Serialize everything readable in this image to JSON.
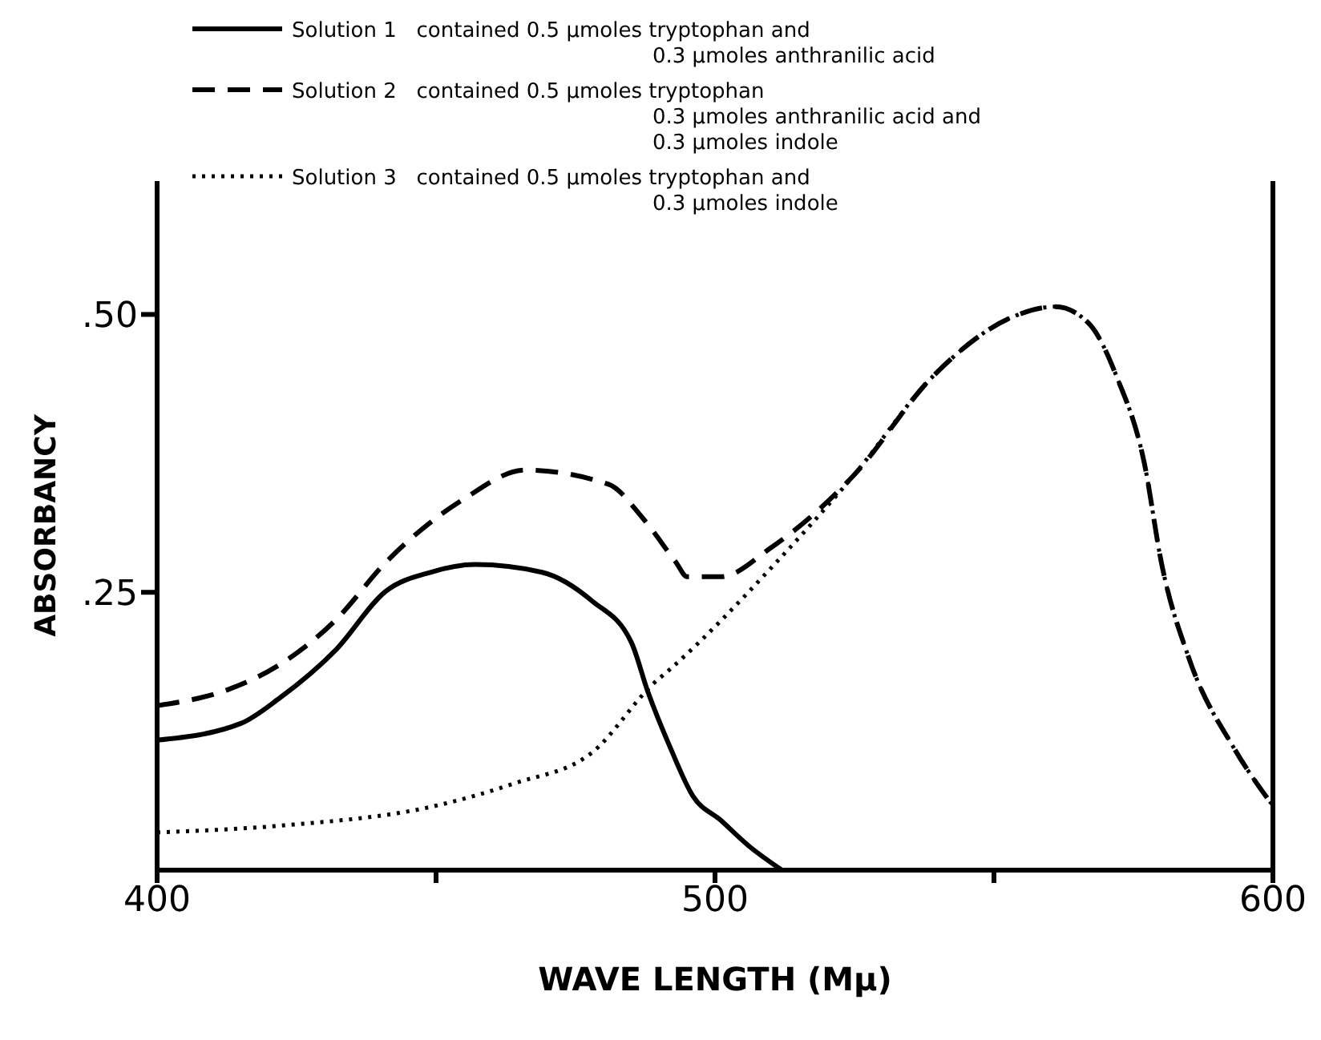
{
  "chart_data": {
    "type": "line",
    "xlabel": "WAVE LENGTH (Mμ)",
    "ylabel": "ABSORBANCY",
    "xlim": [
      400,
      600
    ],
    "ylim": [
      0,
      0.62
    ],
    "xticks": [
      400,
      {
        "value": 450,
        "label": null
      },
      500,
      {
        "value": 550,
        "label": null
      },
      600
    ],
    "yticks": [
      {
        "value": 0.25,
        "label": ".25"
      },
      {
        "value": 0.5,
        "label": ".50"
      }
    ],
    "grid": false,
    "legend": "top",
    "marker": "none",
    "series": [
      {
        "name": "Solution 1   contained 0.5 μmoles tryptophan and\n0.3 μmoles anthranilic acid",
        "color": "#000000",
        "line_style": "solid",
        "x": [
          400,
          415,
          422,
          432,
          441,
          449,
          457,
          469,
          478,
          485,
          488,
          492,
          496,
          501,
          506,
          512
        ],
        "values": [
          0.117,
          0.132,
          0.155,
          0.198,
          0.251,
          0.268,
          0.275,
          0.268,
          0.242,
          0.205,
          0.16,
          0.11,
          0.067,
          0.045,
          0.022,
          0
        ]
      },
      {
        "name": "Solution 2   contained 0.5 μmoles tryptophan\n0.3 μmoles anthranilic acid and\n0.3 μmoles indole",
        "color": "#000000",
        "line_style": "dashed",
        "x": [
          400,
          413,
          422,
          432,
          441,
          455,
          466,
          481,
          487,
          493,
          495,
          501,
          510,
          525,
          539,
          553,
          561,
          567,
          572,
          577,
          580,
          585,
          593,
          600
        ],
        "values": [
          0.148,
          0.163,
          0.185,
          0.225,
          0.277,
          0.334,
          0.36,
          0.347,
          0.317,
          0.277,
          0.264,
          0.264,
          0.29,
          0.356,
          0.444,
          0.497,
          0.507,
          0.492,
          0.444,
          0.365,
          0.277,
          0.19,
          0.11,
          0.058
        ]
      },
      {
        "name": "Solution 3   contained 0.5 μmoles tryptophan and\n0.3 μmoles indole",
        "color": "#000000",
        "line_style": "dotted",
        "x": [
          400,
          422,
          450,
          464,
          478,
          489,
          492,
          511,
          525,
          539,
          553,
          561,
          567,
          572,
          577,
          580,
          585,
          593,
          600
        ],
        "values": [
          0.034,
          0.04,
          0.058,
          0.078,
          0.106,
          0.168,
          0.181,
          0.277,
          0.356,
          0.444,
          0.497,
          0.507,
          0.492,
          0.444,
          0.365,
          0.277,
          0.19,
          0.11,
          0.058
        ]
      }
    ]
  }
}
